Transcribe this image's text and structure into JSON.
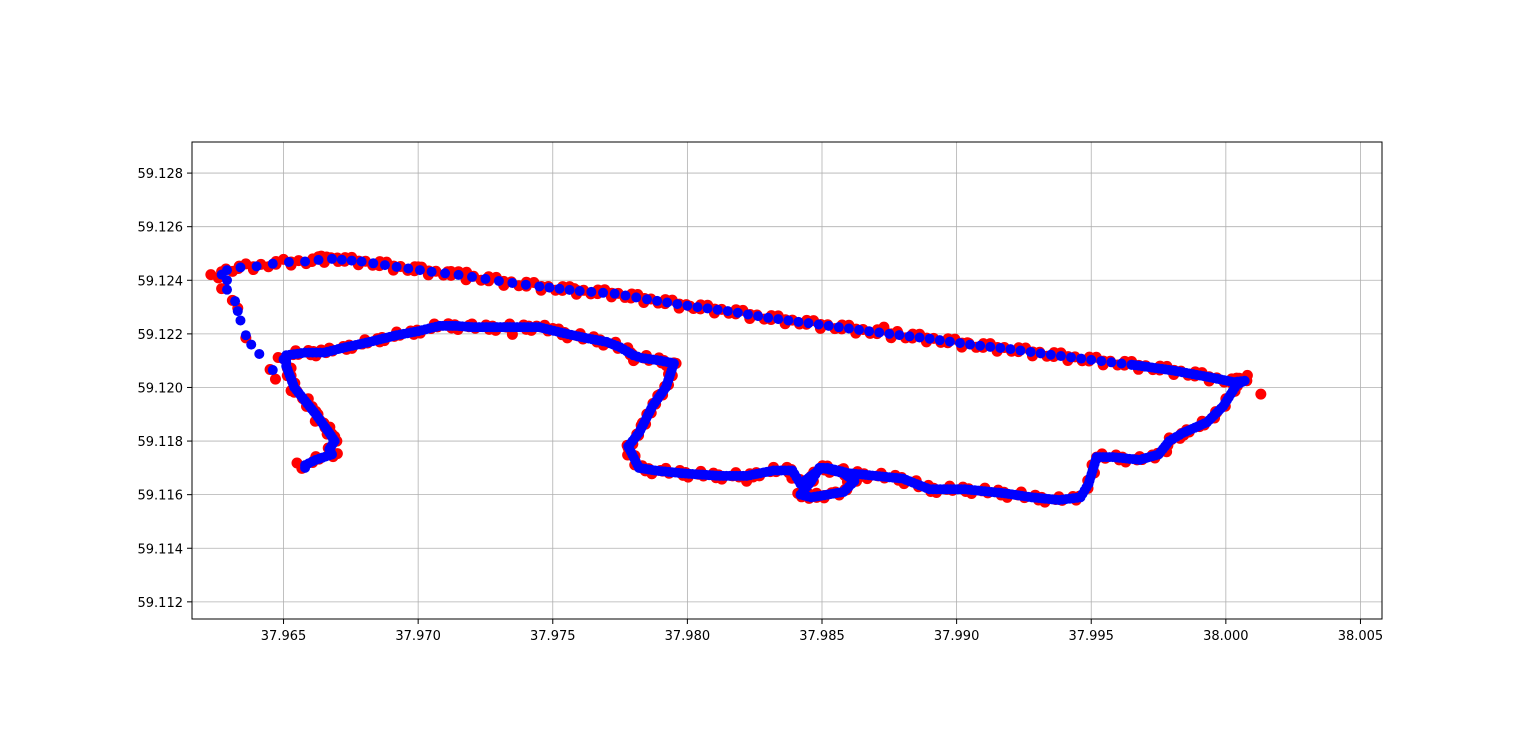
{
  "chart_data": {
    "type": "scatter",
    "title": "",
    "xlabel": "",
    "ylabel": "",
    "xlim": [
      37.9616,
      38.0058
    ],
    "ylim": [
      59.11136,
      59.12916
    ],
    "grid": true,
    "x_ticks": [
      "37.965",
      "37.970",
      "37.975",
      "37.980",
      "37.985",
      "37.990",
      "37.995",
      "38.000",
      "38.005"
    ],
    "y_ticks": [
      "59.112",
      "59.114",
      "59.116",
      "59.118",
      "59.120",
      "59.122",
      "59.124",
      "59.126",
      "59.128"
    ],
    "series": [
      {
        "color": "#ff0000",
        "points": [
          [
            37.9623,
            59.12421
          ],
          [
            37.9627,
            59.12432
          ],
          [
            37.9627,
            59.12369
          ],
          [
            37.9631,
            59.12325
          ],
          [
            37.9633,
            59.12296
          ],
          [
            37.9636,
            59.12185
          ],
          [
            37.9645,
            59.12067
          ],
          [
            37.9647,
            59.12031
          ],
          [
            37.9648,
            59.12112
          ],
          [
            37.9654,
            59.11982
          ],
          [
            37.9658,
            59.11953
          ],
          [
            37.9662,
            59.11911
          ],
          [
            37.9665,
            59.11867
          ],
          [
            37.9669,
            59.11817
          ],
          [
            37.967,
            59.11753
          ],
          [
            37.9655,
            59.11718
          ],
          [
            37.9661,
            59.11724
          ],
          [
            37.9664,
            59.1249
          ],
          [
            37.9666,
            59.12487
          ],
          [
            37.967,
            59.12483
          ],
          [
            37.9664,
            59.1214
          ],
          [
            37.9691,
            59.1245
          ],
          [
            37.97,
            59.1245
          ],
          [
            37.9711,
            59.12432
          ],
          [
            37.9718,
            59.1243
          ],
          [
            37.9719,
            59.12232
          ],
          [
            37.9735,
            59.12198
          ],
          [
            37.9744,
            59.12229
          ],
          [
            37.975,
            59.1222
          ],
          [
            37.9758,
            59.12369
          ],
          [
            37.9779,
            59.1213
          ],
          [
            37.978,
            59.121
          ],
          [
            37.9795,
            59.12092
          ],
          [
            37.9778,
            59.11774
          ],
          [
            37.9783,
            59.117
          ],
          [
            37.979,
            59.1169
          ],
          [
            37.9801,
            59.12303
          ],
          [
            37.9808,
            59.12299
          ],
          [
            37.9822,
            59.1165
          ],
          [
            37.9837,
            59.11702
          ],
          [
            37.9841,
            59.11605
          ],
          [
            37.9848,
            59.1159
          ],
          [
            37.9855,
            59.1161
          ],
          [
            37.986,
            59.11645
          ],
          [
            37.9873,
            59.12225
          ],
          [
            37.9878,
            59.12209
          ],
          [
            37.9892,
            59.1162
          ],
          [
            37.9904,
            59.12167
          ],
          [
            37.9924,
            59.1161
          ],
          [
            37.993,
            59.1159
          ],
          [
            37.9944,
            59.11585
          ],
          [
            37.9949,
            59.1165
          ],
          [
            37.9952,
            59.1174
          ],
          [
            37.9967,
            59.1173
          ],
          [
            37.9978,
            59.1176
          ],
          [
            37.9981,
            59.1206
          ],
          [
            37.9983,
            59.1181
          ],
          [
            37.9992,
            59.1186
          ],
          [
            38.0004,
            59.12035
          ],
          [
            38.0008,
            59.12045
          ],
          [
            38.0013,
            59.11975
          ]
        ]
      },
      {
        "color": "#0000ff",
        "path": [
          [
            37.9627,
            59.12421
          ],
          [
            37.9629,
            59.12438
          ],
          [
            37.9634,
            59.12448
          ],
          [
            37.964,
            59.12452
          ],
          [
            37.9646,
            59.12462
          ],
          [
            37.9652,
            59.12468
          ],
          [
            37.9658,
            59.1247
          ],
          [
            37.9663,
            59.12476
          ],
          [
            37.9668,
            59.1248
          ],
          [
            37.9679,
            59.1247
          ],
          [
            37.9692,
            59.1245
          ],
          [
            37.9705,
            59.12432
          ],
          [
            37.9715,
            59.1242
          ],
          [
            37.9725,
            59.12405
          ],
          [
            37.9735,
            59.1239
          ],
          [
            37.9745,
            59.12377
          ],
          [
            37.976,
            59.1236
          ],
          [
            37.9773,
            59.1235
          ],
          [
            37.9785,
            59.12329
          ],
          [
            37.98,
            59.12305
          ],
          [
            37.9815,
            59.12285
          ],
          [
            37.983,
            59.1226
          ],
          [
            37.9845,
            59.1224
          ],
          [
            37.986,
            59.1222
          ],
          [
            37.9875,
            59.122
          ],
          [
            37.989,
            59.12182
          ],
          [
            37.9905,
            59.1216
          ],
          [
            37.992,
            59.12143
          ],
          [
            37.9935,
            59.12122
          ],
          [
            37.995,
            59.12103
          ],
          [
            37.9965,
            59.12085
          ],
          [
            37.998,
            59.12064
          ],
          [
            37.9993,
            59.1204
          ],
          [
            38.0003,
            59.1202
          ],
          [
            38.0007,
            59.12025
          ],
          [
            38.0004,
            59.1201
          ],
          [
            37.9999,
            59.1193
          ],
          [
            37.9993,
            59.1187
          ],
          [
            37.9984,
            59.1183
          ],
          [
            37.9979,
            59.118
          ],
          [
            37.9975,
            59.1175
          ],
          [
            37.9968,
            59.1173
          ],
          [
            37.9958,
            59.1174
          ],
          [
            37.9952,
            59.1174
          ],
          [
            37.9949,
            59.1164
          ],
          [
            37.9946,
            59.1159
          ],
          [
            37.9938,
            59.1158
          ],
          [
            37.9928,
            59.1159
          ],
          [
            37.9918,
            59.11605
          ],
          [
            37.9903,
            59.1162
          ],
          [
            37.989,
            59.1162
          ],
          [
            37.988,
            59.1166
          ],
          [
            37.987,
            59.1167
          ],
          [
            37.986,
            59.1168
          ],
          [
            37.9852,
            59.117
          ],
          [
            37.9849,
            59.117
          ],
          [
            37.9846,
            59.1165
          ],
          [
            37.9842,
            59.116
          ],
          [
            37.9846,
            59.1159
          ],
          [
            37.9852,
            59.116
          ],
          [
            37.9858,
            59.1161
          ],
          [
            37.9862,
            59.1165
          ],
          [
            37.9858,
            59.1168
          ],
          [
            37.985,
            59.117
          ],
          [
            37.9846,
            59.1167
          ],
          [
            37.9842,
            59.1164
          ],
          [
            37.9839,
            59.1169
          ],
          [
            37.9832,
            59.1169
          ],
          [
            37.9822,
            59.1167
          ],
          [
            37.9812,
            59.1167
          ],
          [
            37.9798,
            59.1168
          ],
          [
            37.9788,
            59.1169
          ],
          [
            37.9782,
            59.117
          ],
          [
            37.9779,
            59.1176
          ],
          [
            37.9778,
            59.1178
          ],
          [
            37.9782,
            59.1183
          ],
          [
            37.9787,
            59.1193
          ],
          [
            37.9792,
            59.12
          ],
          [
            37.9795,
            59.1209
          ],
          [
            37.979,
            59.121
          ],
          [
            37.9783,
            59.1211
          ],
          [
            37.978,
            59.1212
          ],
          [
            37.9775,
            59.1215
          ],
          [
            37.977,
            59.1217
          ],
          [
            37.9762,
            59.12185
          ],
          [
            37.9753,
            59.12205
          ],
          [
            37.9745,
            59.12225
          ],
          [
            37.9738,
            59.12225
          ],
          [
            37.9728,
            59.12225
          ],
          [
            37.972,
            59.12225
          ],
          [
            37.9714,
            59.1223
          ],
          [
            37.9708,
            59.1223
          ],
          [
            37.97,
            59.1221
          ],
          [
            37.9692,
            59.12195
          ],
          [
            37.9682,
            59.1217
          ],
          [
            37.9673,
            59.1215
          ],
          [
            37.9665,
            59.1213
          ],
          [
            37.9658,
            59.1213
          ],
          [
            37.9651,
            59.1212
          ],
          [
            37.9651,
            59.1208
          ],
          [
            37.9654,
            59.12
          ],
          [
            37.9658,
            59.1195
          ],
          [
            37.9662,
            59.119
          ],
          [
            37.9667,
            59.1183
          ],
          [
            37.9669,
            59.118
          ],
          [
            37.9667,
            59.1177
          ],
          [
            37.9668,
            59.1175
          ],
          [
            37.9662,
            59.1173
          ],
          [
            37.9658,
            59.1171
          ],
          [
            37.9658,
            59.117
          ]
        ],
        "extra_points": [
          [
            37.9629,
            59.124
          ],
          [
            37.9629,
            59.12365
          ],
          [
            37.9632,
            59.12322
          ],
          [
            37.9633,
            59.12285
          ],
          [
            37.9634,
            59.1225
          ],
          [
            37.9636,
            59.12195
          ],
          [
            37.9638,
            59.1216
          ],
          [
            37.9641,
            59.12125
          ],
          [
            37.9646,
            59.12065
          ],
          [
            37.965,
            59.12105
          ]
        ]
      }
    ]
  }
}
